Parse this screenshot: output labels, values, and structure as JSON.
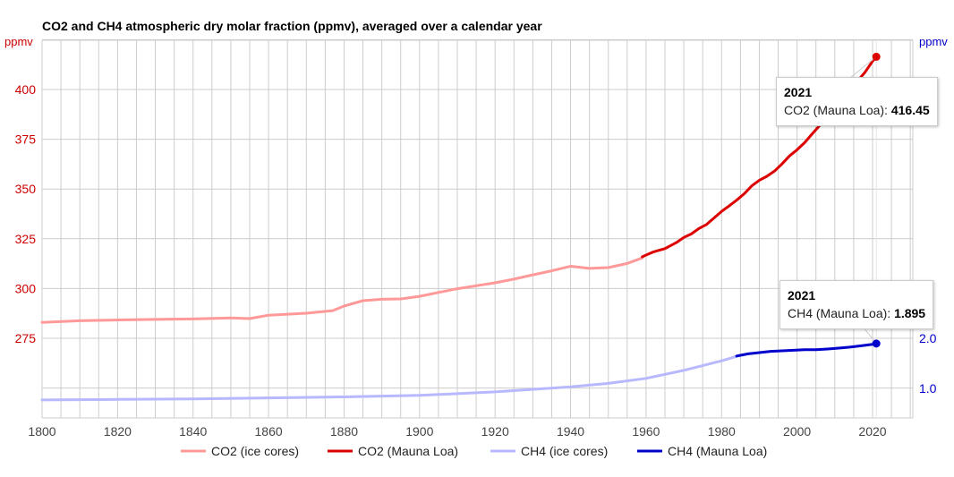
{
  "chart_data": {
    "type": "line",
    "title": "CO2 and CH4 atmospheric dry molar fraction (ppmv), averaged over a calendar year",
    "xlabel": "",
    "ylabel_left": "ppmv",
    "ylabel_right": "ppmv",
    "xlim": [
      1800,
      2030
    ],
    "ylim_left": [
      254,
      425
    ],
    "ylim_right": [
      0.6,
      3.67
    ],
    "x_ticks": [
      1800,
      1820,
      1840,
      1860,
      1880,
      1900,
      1920,
      1940,
      1960,
      1980,
      2000,
      2020
    ],
    "y_ticks_left": [
      275,
      300,
      325,
      350,
      375,
      400
    ],
    "y_ticks_right": [
      "1.0",
      "2.0"
    ],
    "y_ticks_right_values": [
      1.0,
      2.0
    ],
    "grid": true,
    "legend_position": "bottom",
    "series": [
      {
        "name": "CO2 (ice cores)",
        "axis": "left",
        "color": "#ff9999",
        "width": 3,
        "x": [
          1800,
          1810,
          1820,
          1830,
          1840,
          1850,
          1855,
          1860,
          1870,
          1877,
          1880,
          1885,
          1890,
          1895,
          1900,
          1905,
          1910,
          1915,
          1920,
          1925,
          1930,
          1935,
          1940,
          1945,
          1950,
          1955,
          1959
        ],
        "values": [
          283.0,
          283.8,
          284.2,
          284.5,
          284.7,
          285.2,
          284.9,
          286.6,
          287.6,
          288.9,
          291.2,
          293.9,
          294.6,
          294.8,
          296.1,
          298.0,
          299.9,
          301.4,
          302.9,
          304.7,
          306.9,
          308.9,
          311.2,
          310.1,
          310.5,
          312.6,
          315.4
        ]
      },
      {
        "name": "CO2 (Mauna Loa)",
        "axis": "left",
        "color": "#dd0000",
        "width": 3,
        "x": [
          1959,
          1962,
          1965,
          1968,
          1970,
          1972,
          1974,
          1976,
          1978,
          1980,
          1982,
          1984,
          1986,
          1988,
          1990,
          1992,
          1994,
          1996,
          1998,
          2000,
          2002,
          2004,
          2006,
          2008,
          2010,
          2012,
          2014,
          2016,
          2018,
          2020,
          2021
        ],
        "values": [
          315.98,
          318.45,
          320.04,
          323.05,
          325.68,
          327.45,
          330.19,
          332.15,
          335.41,
          338.76,
          341.48,
          344.4,
          347.61,
          351.57,
          354.39,
          356.38,
          358.96,
          362.59,
          366.65,
          369.71,
          373.28,
          377.7,
          381.9,
          385.6,
          389.9,
          393.9,
          397.1,
          404.2,
          408.7,
          414.2,
          416.45
        ]
      },
      {
        "name": "CH4 (ice cores)",
        "axis": "right",
        "color": "#b8b8ff",
        "width": 3,
        "x": [
          1800,
          1820,
          1840,
          1860,
          1880,
          1900,
          1920,
          1940,
          1950,
          1960,
          1970,
          1980,
          1984
        ],
        "values": [
          0.77,
          0.78,
          0.79,
          0.81,
          0.83,
          0.86,
          0.93,
          1.03,
          1.1,
          1.2,
          1.36,
          1.55,
          1.64
        ]
      },
      {
        "name": "CH4 (Mauna Loa)",
        "axis": "right",
        "color": "#0000cc",
        "width": 3,
        "x": [
          1984,
          1987,
          1990,
          1993,
          1996,
          1999,
          2002,
          2005,
          2008,
          2011,
          2014,
          2017,
          2020,
          2021
        ],
        "values": [
          1.645,
          1.69,
          1.715,
          1.74,
          1.75,
          1.76,
          1.772,
          1.772,
          1.785,
          1.803,
          1.823,
          1.85,
          1.879,
          1.895
        ]
      }
    ],
    "tooltips": [
      {
        "year": "2021",
        "series": "CO2 (Mauna Loa)",
        "label": "CO2 (Mauna Loa): ",
        "value": "416.45"
      },
      {
        "year": "2021",
        "series": "CH4 (Mauna Loa)",
        "label": "CH4 (Mauna Loa): ",
        "value": "1.895"
      }
    ]
  },
  "colors": {
    "left_axis": "#cc0000",
    "right_axis": "#0000cc",
    "grid": "#cccccc",
    "tick_text": "#444444"
  }
}
